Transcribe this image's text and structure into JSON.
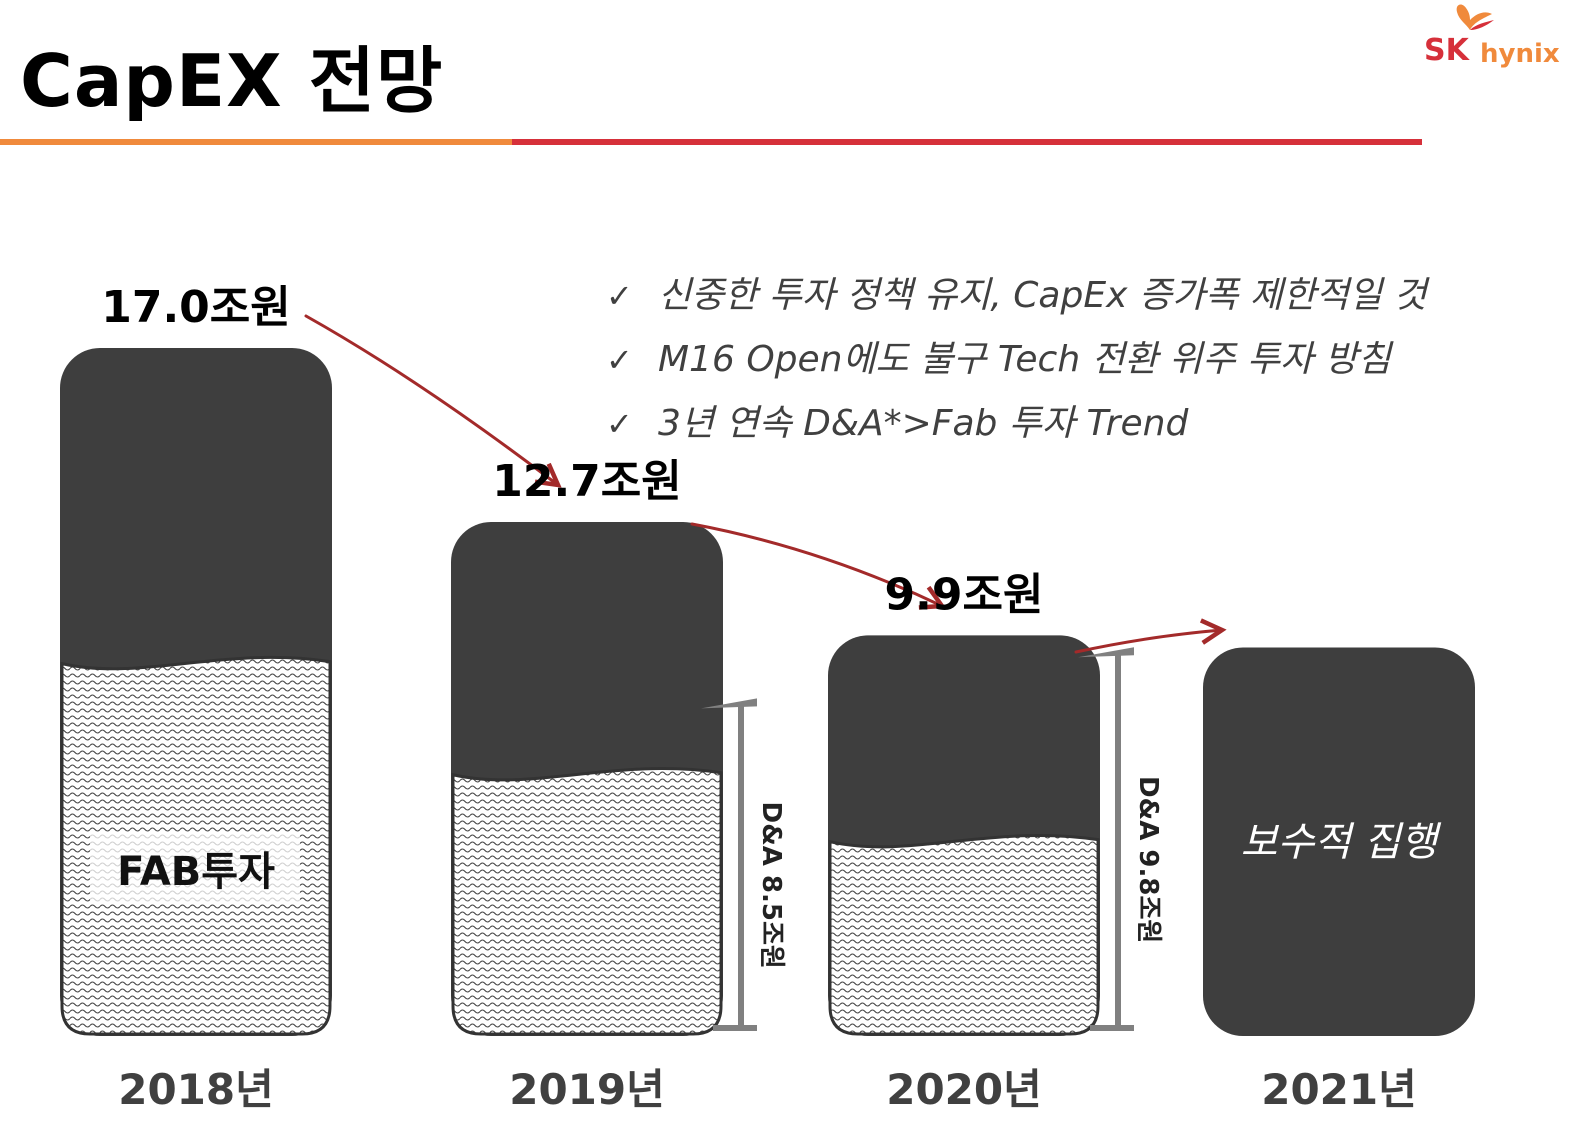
{
  "header": {
    "title": "CapEX 전망",
    "logo_text": {
      "brand": "SK",
      "product": "hynix"
    }
  },
  "colors": {
    "orange_rule": "#F08A3C",
    "red_rule": "#D6303A",
    "bar_dark": "#3E3E3E",
    "bar_outline": "#333333",
    "arrow": "#A32A2A",
    "bracket": "#808080",
    "text_dark": "#404040"
  },
  "bullets": [
    {
      "mark": "✓",
      "text": "신중한 투자 정책 유지, CapEx 증가폭 제한적일 것"
    },
    {
      "mark": "✓",
      "text": "M16 Open에도 불구 Tech 전환 위주 투자 방침"
    },
    {
      "mark": "✓",
      "text": "3년 연속 D&A*>Fab 투자 Trend"
    }
  ],
  "chart_data": {
    "type": "bar",
    "unit": "조원",
    "categories": [
      "2018년",
      "2019년",
      "2020년",
      "2021년"
    ],
    "values": [
      17.0,
      12.7,
      9.9,
      null
    ],
    "value_labels": [
      "17.0조원",
      "12.7조원",
      "9.9조원",
      ""
    ],
    "fab_investment_fraction": [
      0.55,
      0.52,
      0.5,
      0
    ],
    "inner_labels": [
      "FAB투자",
      "",
      "",
      "보수적 집행"
    ],
    "dna": [
      {
        "category": "2019년",
        "value": 8.5,
        "label": "D&A 8.5조원"
      },
      {
        "category": "2020년",
        "value": 9.8,
        "label": "D&A 9.8조원"
      }
    ],
    "trend_arrows": [
      {
        "from": "2018년",
        "to": "2019년"
      },
      {
        "from": "2019년",
        "to": "2020년"
      },
      {
        "from": "2020년",
        "to": "2021년"
      }
    ]
  }
}
